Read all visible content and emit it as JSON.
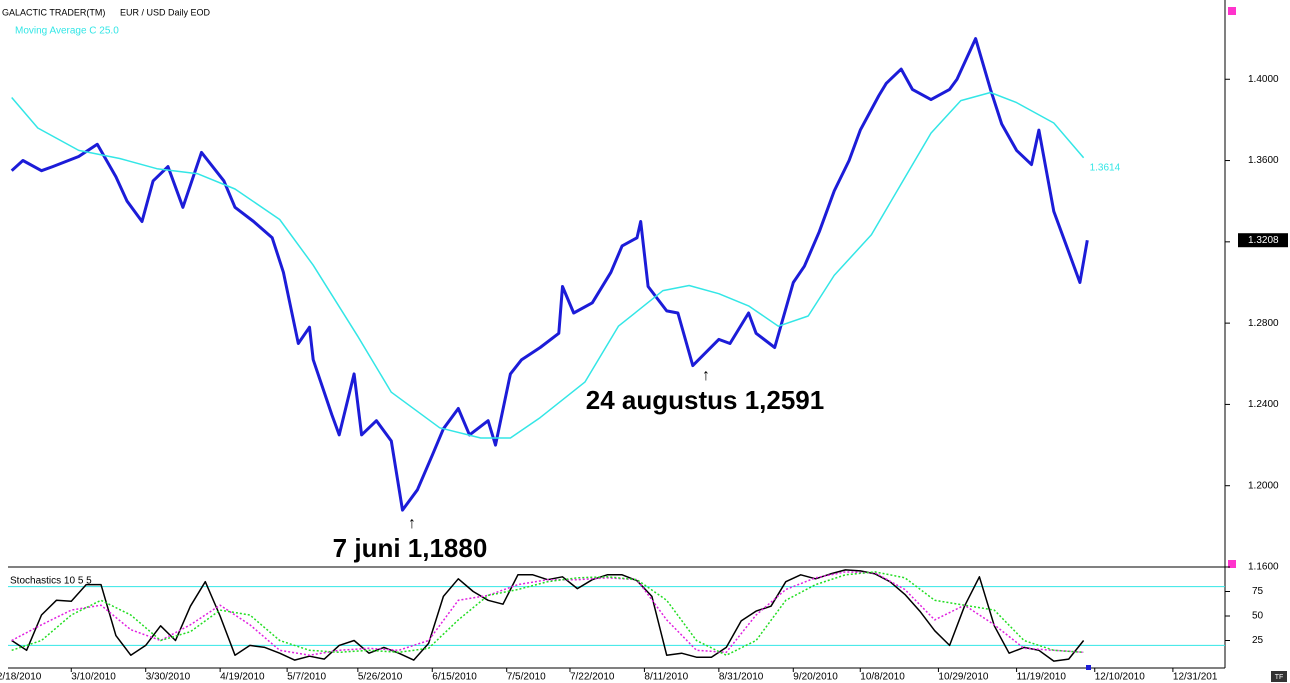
{
  "header": {
    "app": "GALACTIC TRADER(TM)"
  },
  "chart_data": [
    {
      "type": "line",
      "title": "EUR / USD Daily EOD",
      "xlim": [
        "2010-02-21",
        "2011-01-14"
      ],
      "ylim": [
        1.16,
        1.439
      ],
      "yticks": [
        {
          "value": 1.16,
          "label": "1.1600"
        },
        {
          "value": 1.2,
          "label": "1.2000"
        },
        {
          "value": 1.24,
          "label": "1.2400"
        },
        {
          "value": 1.28,
          "label": "1.2800"
        },
        {
          "value": 1.32,
          "label": "1.3200"
        },
        {
          "value": 1.36,
          "label": "1.3600"
        },
        {
          "value": 1.4,
          "label": "1.4000"
        }
      ],
      "annotations": [
        "7 juni 1,1880",
        "24 augustus 1,2591"
      ],
      "series": [
        {
          "color": "#1c1cd8",
          "x": [
            "2010-02-22",
            "2010-02-25",
            "2010-03-02",
            "2010-03-05",
            "2010-03-12",
            "2010-03-17",
            "2010-03-22",
            "2010-03-25",
            "2010-03-29",
            "2010-04-01",
            "2010-04-05",
            "2010-04-09",
            "2010-04-14",
            "2010-04-20",
            "2010-04-23",
            "2010-04-28",
            "2010-05-03",
            "2010-05-06",
            "2010-05-10",
            "2010-05-13",
            "2010-05-14",
            "2010-05-19",
            "2010-05-21",
            "2010-05-25",
            "2010-05-27",
            "2010-05-31",
            "2010-06-04",
            "2010-06-07",
            "2010-06-11",
            "2010-06-15",
            "2010-06-18",
            "2010-06-22",
            "2010-06-25",
            "2010-06-30",
            "2010-07-02",
            "2010-07-06",
            "2010-07-09",
            "2010-07-14",
            "2010-07-19",
            "2010-07-20",
            "2010-07-23",
            "2010-07-28",
            "2010-08-02",
            "2010-08-05",
            "2010-08-09",
            "2010-08-10",
            "2010-08-12",
            "2010-08-17",
            "2010-08-20",
            "2010-08-24",
            "2010-08-31",
            "2010-09-03",
            "2010-09-08",
            "2010-09-10",
            "2010-09-15",
            "2010-09-20",
            "2010-09-23",
            "2010-09-27",
            "2010-10-01",
            "2010-10-05",
            "2010-10-08",
            "2010-10-13",
            "2010-10-15",
            "2010-10-19",
            "2010-10-22",
            "2010-10-27",
            "2010-11-01",
            "2010-11-03",
            "2010-11-08",
            "2010-11-12",
            "2010-11-15",
            "2010-11-19",
            "2010-11-23",
            "2010-11-25",
            "2010-11-29",
            "2010-12-02",
            "2010-12-06",
            "2010-12-08"
          ],
          "values": [
            1.355,
            1.36,
            1.355,
            1.357,
            1.362,
            1.368,
            1.352,
            1.34,
            1.33,
            1.35,
            1.357,
            1.337,
            1.364,
            1.35,
            1.337,
            1.33,
            1.322,
            1.305,
            1.27,
            1.278,
            1.262,
            1.235,
            1.225,
            1.255,
            1.225,
            1.232,
            1.222,
            1.188,
            1.198,
            1.215,
            1.228,
            1.238,
            1.225,
            1.232,
            1.22,
            1.255,
            1.262,
            1.268,
            1.275,
            1.298,
            1.285,
            1.29,
            1.305,
            1.318,
            1.322,
            1.33,
            1.298,
            1.286,
            1.285,
            1.2591,
            1.272,
            1.27,
            1.285,
            1.275,
            1.268,
            1.3,
            1.308,
            1.325,
            1.345,
            1.36,
            1.375,
            1.392,
            1.398,
            1.405,
            1.395,
            1.39,
            1.395,
            1.4,
            1.42,
            1.395,
            1.378,
            1.365,
            1.358,
            1.375,
            1.335,
            1.32,
            1.3,
            1.3208
          ]
        },
        {
          "name": "Moving Average C 25.0",
          "color": "#33e6e6",
          "x": [
            "2010-02-22",
            "2010-03-01",
            "2010-03-12",
            "2010-03-23",
            "2010-04-02",
            "2010-04-13",
            "2010-04-23",
            "2010-05-05",
            "2010-05-14",
            "2010-05-26",
            "2010-06-04",
            "2010-06-17",
            "2010-06-28",
            "2010-07-06",
            "2010-07-14",
            "2010-07-26",
            "2010-08-04",
            "2010-08-16",
            "2010-08-23",
            "2010-08-31",
            "2010-09-08",
            "2010-09-16",
            "2010-09-24",
            "2010-10-01",
            "2010-10-11",
            "2010-10-19",
            "2010-10-27",
            "2010-11-04",
            "2010-11-12",
            "2010-11-19",
            "2010-11-29",
            "2010-12-07"
          ],
          "values": [
            1.391,
            1.376,
            1.365,
            1.361,
            1.356,
            1.3535,
            1.346,
            1.331,
            1.3085,
            1.2735,
            1.246,
            1.2285,
            1.2235,
            1.2235,
            1.2335,
            1.251,
            1.2785,
            1.296,
            1.2985,
            1.2945,
            1.2885,
            1.2785,
            1.2835,
            1.3035,
            1.3235,
            1.3485,
            1.3735,
            1.3895,
            1.3935,
            1.3885,
            1.3785,
            1.3614
          ]
        }
      ]
    },
    {
      "type": "line",
      "title": "Stochastics 10 5 5",
      "xlim": [
        "2010-02-21",
        "2011-01-14"
      ],
      "ylim": [
        0,
        100
      ],
      "yticks": [
        25,
        50,
        75
      ],
      "levels": [
        80,
        20
      ],
      "level_color": "#33e6e6",
      "xticks": [
        {
          "value": "2010-02-18",
          "label": "2/18/2010"
        },
        {
          "value": "2010-03-10",
          "label": "3/10/2010"
        },
        {
          "value": "2010-03-30",
          "label": "3/30/2010"
        },
        {
          "value": "2010-04-19",
          "label": "4/19/2010"
        },
        {
          "value": "2010-05-07",
          "label": "5/7/2010"
        },
        {
          "value": "2010-05-26",
          "label": "5/26/2010"
        },
        {
          "value": "2010-06-15",
          "label": "6/15/2010"
        },
        {
          "value": "2010-07-05",
          "label": "7/5/2010"
        },
        {
          "value": "2010-07-22",
          "label": "7/22/2010"
        },
        {
          "value": "2010-08-11",
          "label": "8/11/2010"
        },
        {
          "value": "2010-08-31",
          "label": "8/31/2010"
        },
        {
          "value": "2010-09-20",
          "label": "9/20/2010"
        },
        {
          "value": "2010-10-08",
          "label": "10/8/2010"
        },
        {
          "value": "2010-10-29",
          "label": "10/29/2010"
        },
        {
          "value": "2010-11-19",
          "label": "11/19/2010"
        },
        {
          "value": "2010-12-10",
          "label": "12/10/2010"
        },
        {
          "value": "2010-12-31",
          "label": "12/31/201"
        }
      ],
      "series": [
        {
          "color": "#000000",
          "dash": false,
          "x": [
            "2010-02-22",
            "2010-02-26",
            "2010-03-02",
            "2010-03-06",
            "2010-03-10",
            "2010-03-14",
            "2010-03-18",
            "2010-03-22",
            "2010-03-26",
            "2010-03-30",
            "2010-04-03",
            "2010-04-07",
            "2010-04-11",
            "2010-04-15",
            "2010-04-19",
            "2010-04-23",
            "2010-04-27",
            "2010-05-01",
            "2010-05-05",
            "2010-05-09",
            "2010-05-13",
            "2010-05-17",
            "2010-05-21",
            "2010-05-25",
            "2010-05-29",
            "2010-06-02",
            "2010-06-06",
            "2010-06-10",
            "2010-06-14",
            "2010-06-18",
            "2010-06-22",
            "2010-06-26",
            "2010-06-30",
            "2010-07-04",
            "2010-07-08",
            "2010-07-12",
            "2010-07-16",
            "2010-07-20",
            "2010-07-24",
            "2010-07-28",
            "2010-08-01",
            "2010-08-05",
            "2010-08-09",
            "2010-08-13",
            "2010-08-17",
            "2010-08-21",
            "2010-08-25",
            "2010-08-29",
            "2010-09-02",
            "2010-09-06",
            "2010-09-10",
            "2010-09-14",
            "2010-09-18",
            "2010-09-22",
            "2010-09-26",
            "2010-09-30",
            "2010-10-04",
            "2010-10-08",
            "2010-10-12",
            "2010-10-16",
            "2010-10-20",
            "2010-10-24",
            "2010-10-28",
            "2010-11-01",
            "2010-11-05",
            "2010-11-09",
            "2010-11-13",
            "2010-11-17",
            "2010-11-21",
            "2010-11-25",
            "2010-11-29",
            "2010-12-03",
            "2010-12-07"
          ],
          "values": [
            25,
            15,
            51,
            66,
            65,
            82,
            82,
            30,
            10,
            20,
            40,
            25,
            60,
            85,
            50,
            10,
            20,
            18,
            12,
            5,
            9,
            6,
            20,
            25,
            12,
            18,
            12,
            5,
            22,
            70,
            88,
            75,
            66,
            62,
            92,
            92,
            87,
            90,
            78,
            87,
            92,
            92,
            86,
            70,
            10,
            12,
            8,
            8,
            18,
            45,
            55,
            60,
            85,
            92,
            88,
            93,
            97,
            96,
            93,
            85,
            72,
            55,
            35,
            20,
            60,
            90,
            40,
            12,
            18,
            15,
            4,
            6,
            25
          ]
        },
        {
          "color": "#e020e0",
          "dash": true,
          "x": [
            "2010-02-22",
            "2010-03-02",
            "2010-03-10",
            "2010-03-18",
            "2010-03-26",
            "2010-04-03",
            "2010-04-11",
            "2010-04-19",
            "2010-04-27",
            "2010-05-05",
            "2010-05-13",
            "2010-05-21",
            "2010-05-29",
            "2010-06-06",
            "2010-06-14",
            "2010-06-22",
            "2010-06-30",
            "2010-07-08",
            "2010-07-16",
            "2010-07-24",
            "2010-08-01",
            "2010-08-09",
            "2010-08-17",
            "2010-08-25",
            "2010-09-02",
            "2010-09-10",
            "2010-09-18",
            "2010-09-26",
            "2010-10-04",
            "2010-10-12",
            "2010-10-20",
            "2010-10-28",
            "2010-11-05",
            "2010-11-13",
            "2010-11-21",
            "2010-11-29",
            "2010-12-07"
          ],
          "values": [
            25,
            41,
            56,
            61,
            36,
            25,
            41,
            61,
            41,
            15,
            10,
            15,
            17,
            15,
            25,
            66,
            71,
            82,
            87,
            87,
            89,
            87,
            46,
            15,
            13,
            51,
            77,
            89,
            95,
            94,
            77,
            46,
            61,
            41,
            17,
            15,
            13
          ]
        },
        {
          "color": "#22dd22",
          "dash": true,
          "x": [
            "2010-02-22",
            "2010-03-02",
            "2010-03-10",
            "2010-03-18",
            "2010-03-26",
            "2010-04-03",
            "2010-04-11",
            "2010-04-19",
            "2010-04-27",
            "2010-05-05",
            "2010-05-13",
            "2010-05-21",
            "2010-05-29",
            "2010-06-06",
            "2010-06-14",
            "2010-06-22",
            "2010-06-30",
            "2010-07-08",
            "2010-07-16",
            "2010-07-24",
            "2010-08-01",
            "2010-08-09",
            "2010-08-17",
            "2010-08-25",
            "2010-09-02",
            "2010-09-10",
            "2010-09-18",
            "2010-09-26",
            "2010-10-04",
            "2010-10-12",
            "2010-10-20",
            "2010-10-28",
            "2010-11-05",
            "2010-11-13",
            "2010-11-21",
            "2010-11-29",
            "2010-12-07"
          ],
          "values": [
            15,
            25,
            51,
            66,
            51,
            25,
            34,
            56,
            51,
            25,
            15,
            13,
            15,
            13,
            17,
            46,
            71,
            77,
            85,
            89,
            90,
            87,
            66,
            25,
            10,
            25,
            66,
            82,
            92,
            95,
            89,
            66,
            61,
            56,
            25,
            15,
            13
          ]
        }
      ]
    }
  ]
}
